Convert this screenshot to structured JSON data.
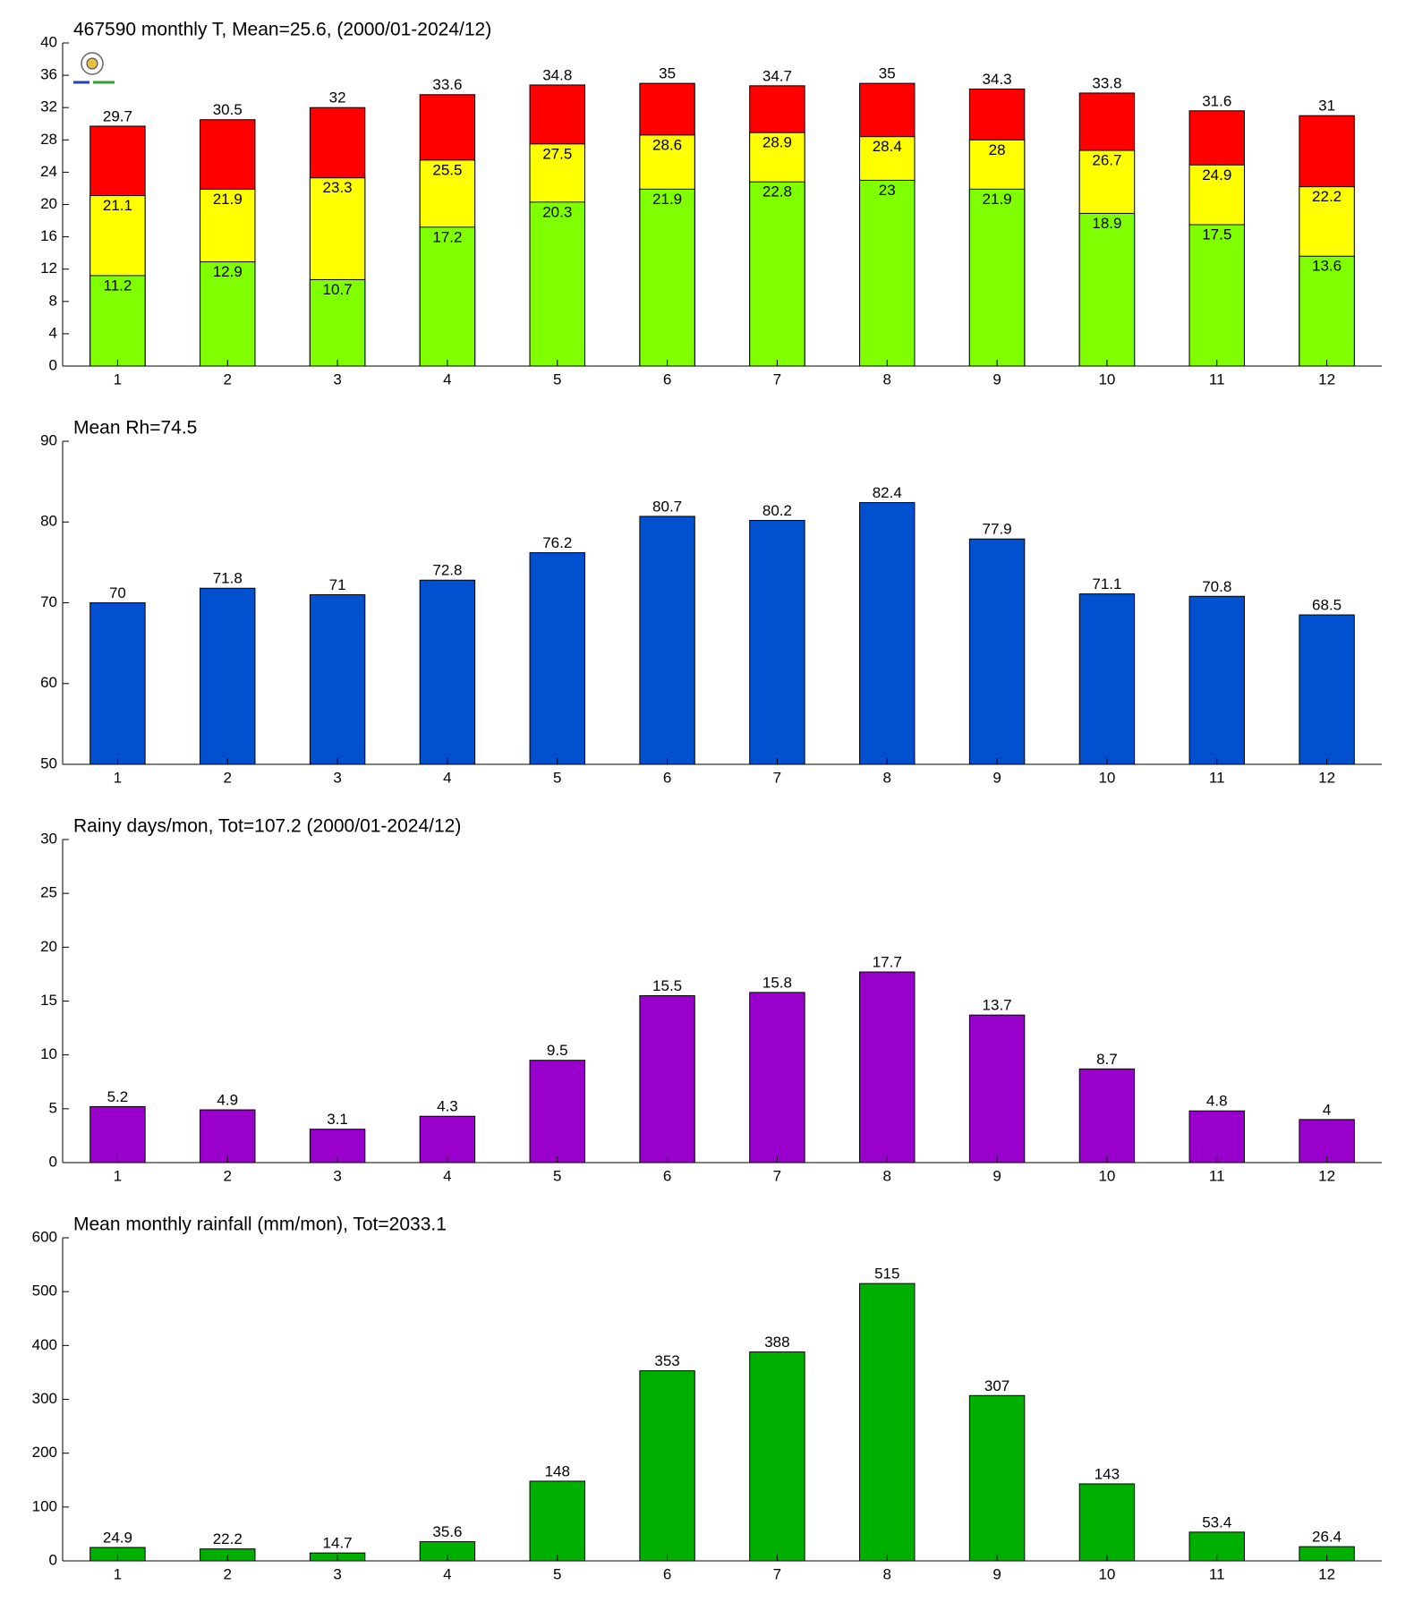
{
  "chart_data": [
    {
      "type": "bar",
      "title": "467590 monthly T, Mean=25.6, (2000/01-2024/12)",
      "overlap": true,
      "categories": [
        "1",
        "2",
        "3",
        "4",
        "5",
        "6",
        "7",
        "8",
        "9",
        "10",
        "11",
        "12"
      ],
      "series": [
        {
          "color": "#ff0000",
          "values": [
            29.7,
            30.5,
            32,
            33.6,
            34.8,
            35,
            34.7,
            35,
            34.3,
            33.8,
            31.6,
            31
          ]
        },
        {
          "color": "#ffff00",
          "values": [
            21.1,
            21.9,
            23.3,
            25.5,
            27.5,
            28.6,
            28.9,
            28.4,
            28,
            26.7,
            24.9,
            22.2
          ]
        },
        {
          "color": "#80ff00",
          "values": [
            11.2,
            12.9,
            10.7,
            17.2,
            20.3,
            21.9,
            22.8,
            23,
            21.9,
            18.9,
            17.5,
            13.6
          ]
        }
      ],
      "ylim": [
        0,
        40
      ],
      "yticks": [
        0,
        4,
        8,
        12,
        16,
        20,
        24,
        28,
        32,
        36,
        40
      ]
    },
    {
      "type": "bar",
      "title": "Mean Rh=74.5",
      "categories": [
        "1",
        "2",
        "3",
        "4",
        "5",
        "6",
        "7",
        "8",
        "9",
        "10",
        "11",
        "12"
      ],
      "series": [
        {
          "color": "#0050d0",
          "values": [
            70,
            71.8,
            71,
            72.8,
            76.2,
            80.7,
            80.2,
            82.4,
            77.9,
            71.1,
            70.8,
            68.5
          ]
        }
      ],
      "ylim": [
        50,
        90
      ],
      "yticks": [
        50,
        60,
        70,
        80,
        90
      ]
    },
    {
      "type": "bar",
      "title": "Rainy days/mon, Tot=107.2 (2000/01-2024/12)",
      "categories": [
        "1",
        "2",
        "3",
        "4",
        "5",
        "6",
        "7",
        "8",
        "9",
        "10",
        "11",
        "12"
      ],
      "series": [
        {
          "color": "#9900cc",
          "values": [
            5.2,
            4.9,
            3.1,
            4.3,
            9.5,
            15.5,
            15.8,
            17.7,
            13.7,
            8.7,
            4.8,
            4
          ]
        }
      ],
      "ylim": [
        0,
        30
      ],
      "yticks": [
        0,
        5,
        10,
        15,
        20,
        25,
        30
      ]
    },
    {
      "type": "bar",
      "title": "Mean monthly rainfall (mm/mon), Tot=2033.1",
      "categories": [
        "1",
        "2",
        "3",
        "4",
        "5",
        "6",
        "7",
        "8",
        "9",
        "10",
        "11",
        "12"
      ],
      "series": [
        {
          "color": "#00b000",
          "values": [
            24.9,
            22.2,
            14.7,
            35.6,
            148,
            353,
            388,
            515,
            307,
            143,
            53.4,
            26.4
          ]
        }
      ],
      "ylim": [
        0,
        600
      ],
      "yticks": [
        0,
        100,
        200,
        300,
        400,
        500,
        600
      ]
    }
  ]
}
